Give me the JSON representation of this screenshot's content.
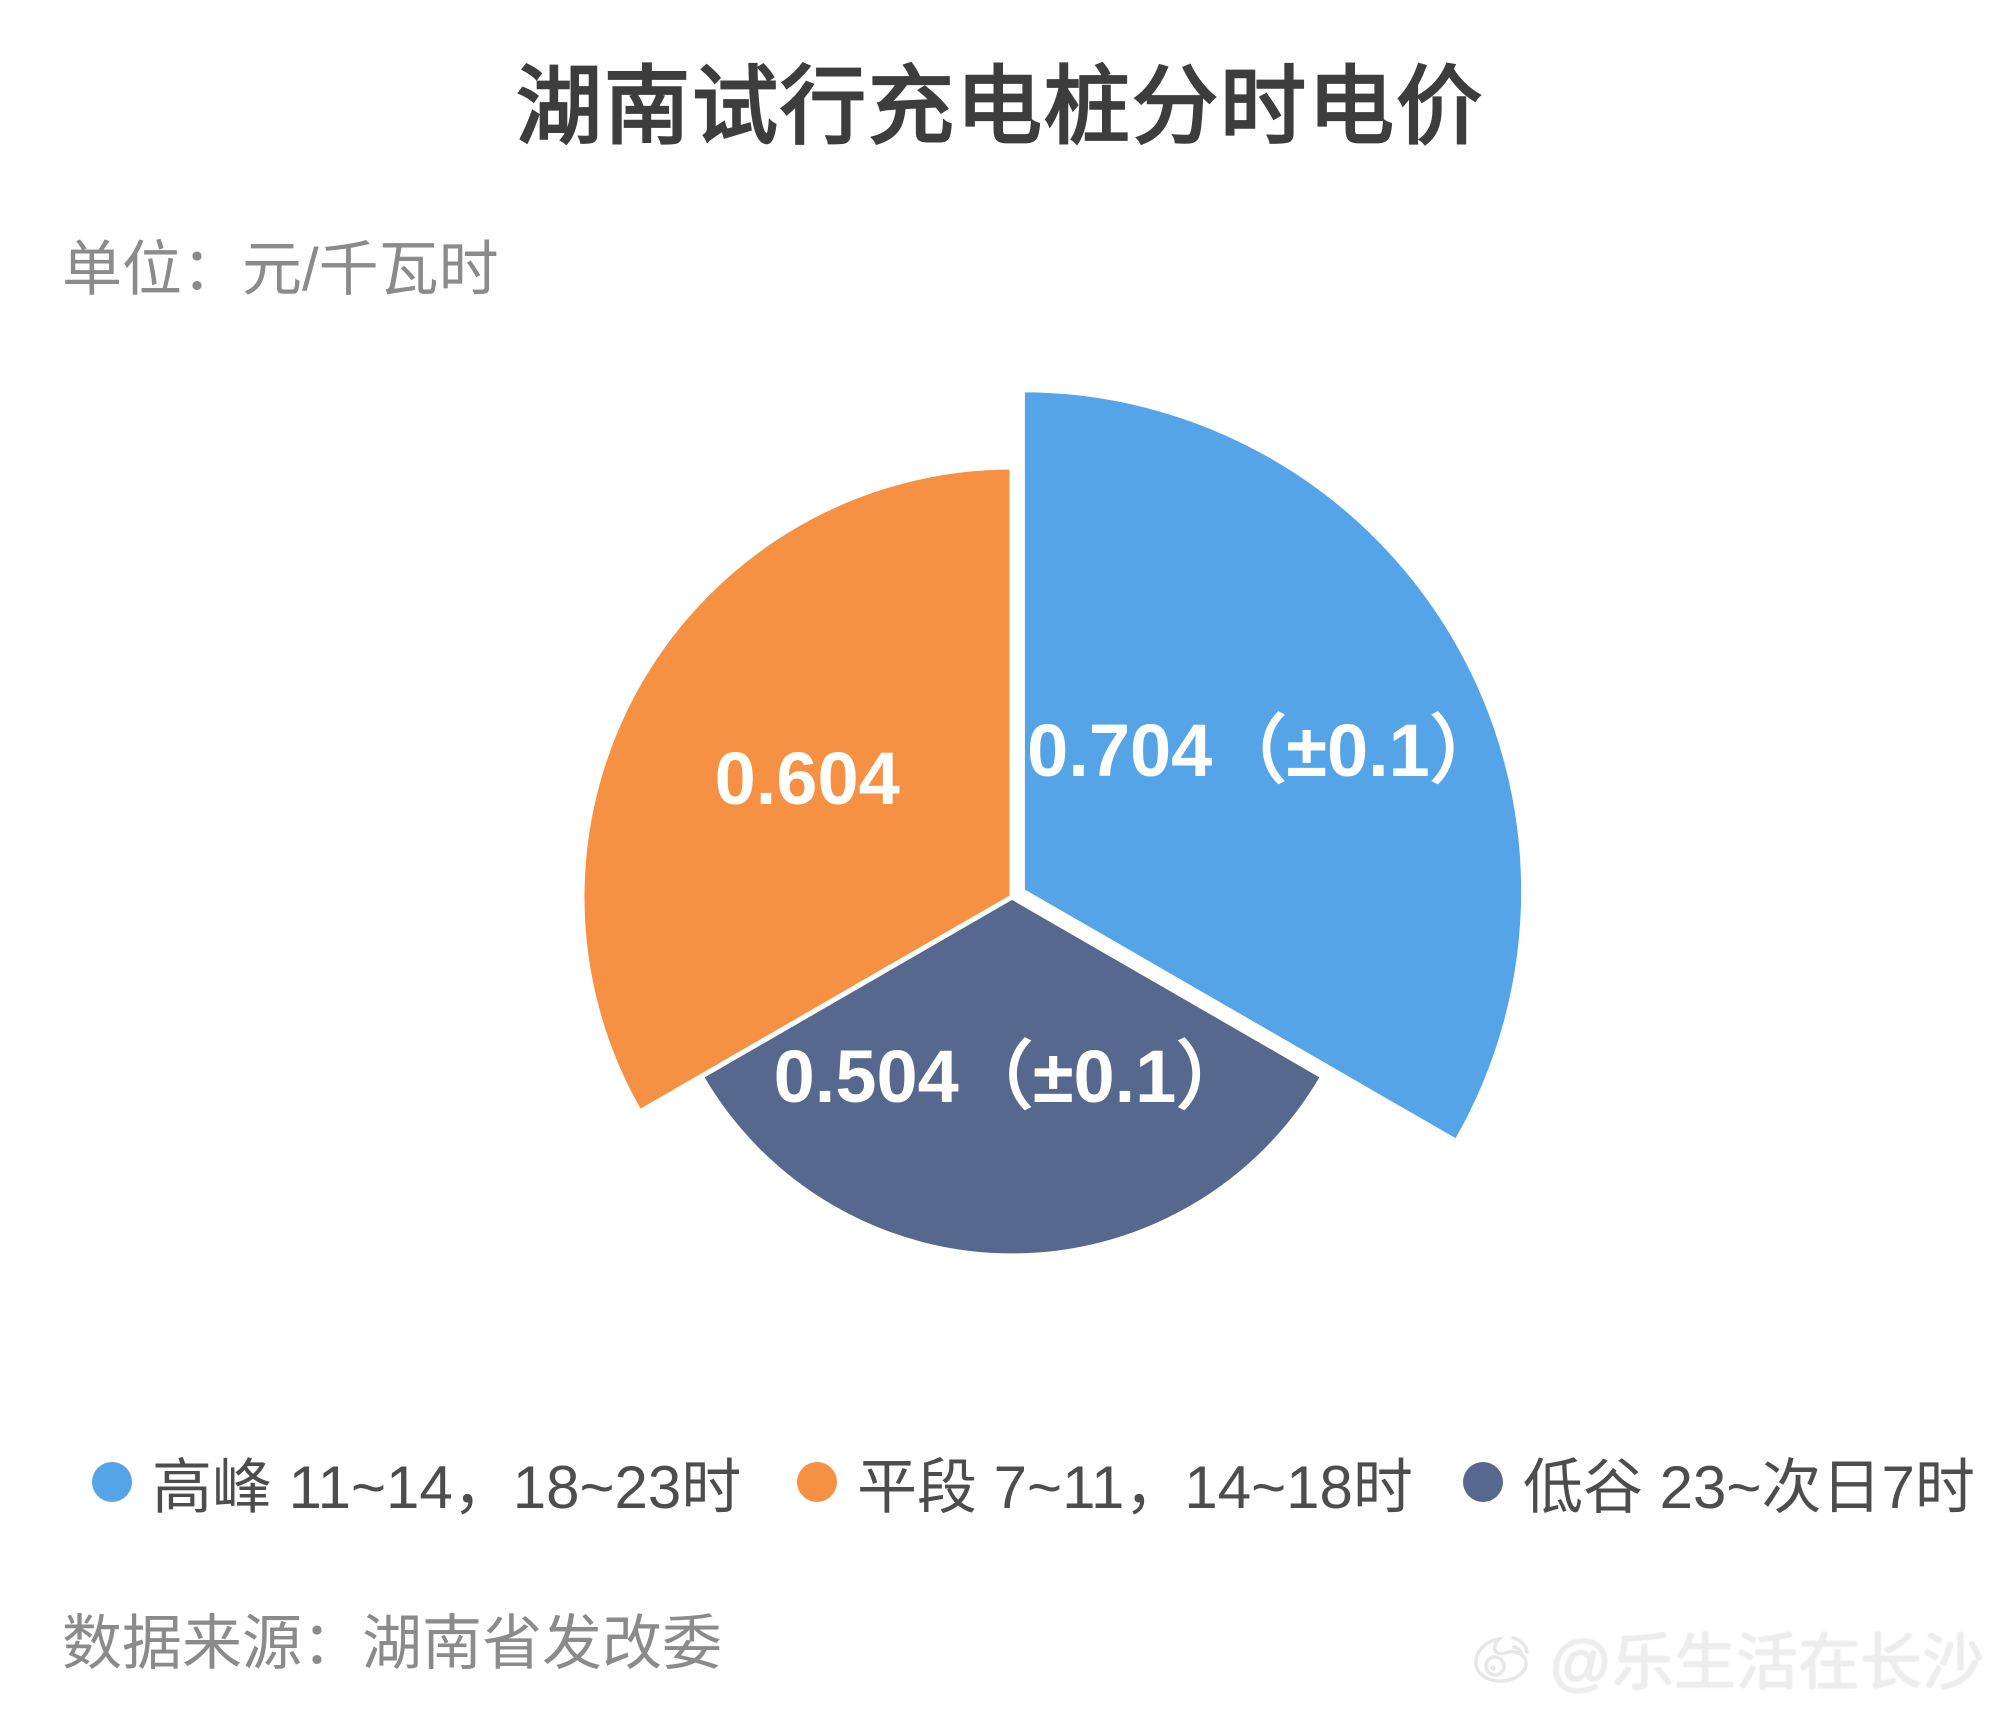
{
  "page": {
    "title": "湖南试行充电桩分时电价",
    "unit_note": "单位：元/千瓦时",
    "source_note": "数据来源：湖南省发改委",
    "watermark": "@乐生活在长沙"
  },
  "colors": {
    "peak_blue": "#56a4e8",
    "flat_orange": "#f69144",
    "valley_slate": "#56688e",
    "title_text": "#3d3d3d",
    "legend_text": "#4d4d4d",
    "secondary_text": "#8b8b8b",
    "slice_border": "#ffffff",
    "slice_label_text": "#ffffff"
  },
  "chart_data": {
    "type": "pie",
    "variant": "rose",
    "title": "湖南试行充电桩分时电价",
    "unit": "元/千瓦时",
    "start_angle_deg": 0,
    "angle_per_slice_deg": 120,
    "radius_proportional_to_value": true,
    "legend_position": "bottom",
    "slices": [
      {
        "name": "高峰 11~14，18~23时",
        "value": 0.704,
        "label": "0.704（±0.1）",
        "color": "#56a4e8",
        "exploded": true
      },
      {
        "name": "低谷 23~次日7时",
        "value": 0.504,
        "label": "0.504（±0.1）",
        "color": "#56688e",
        "exploded": false
      },
      {
        "name": "平段 7~11，14~18时",
        "value": 0.604,
        "label": "0.604",
        "color": "#f69144",
        "exploded": false
      }
    ]
  },
  "legend": {
    "items": [
      {
        "label": "高峰 11~14，18~23时",
        "color": "#56a4e8"
      },
      {
        "label": "平段 7~11，14~18时",
        "color": "#f69144"
      },
      {
        "label": "低谷 23~次日7时",
        "color": "#56688e"
      }
    ]
  }
}
